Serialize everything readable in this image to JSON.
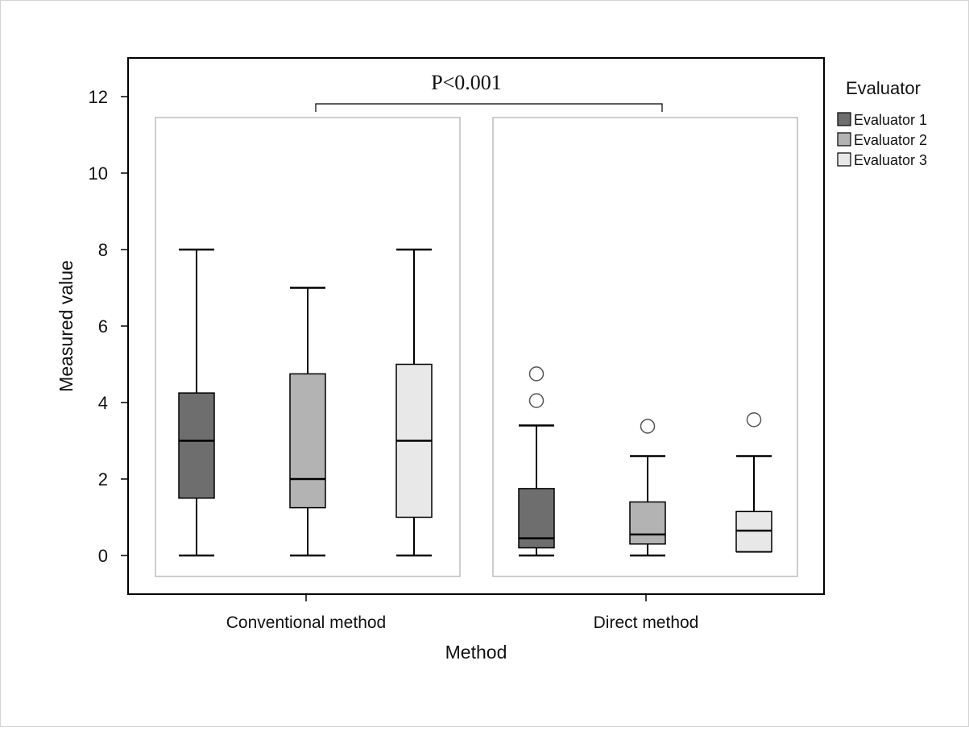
{
  "chart_data": {
    "type": "box",
    "xlabel": "Method",
    "ylabel": "Measured value",
    "categories": [
      "Conventional method",
      "Direct method"
    ],
    "ylim": [
      -0.75,
      13
    ],
    "yticks": [
      0,
      2,
      4,
      6,
      8,
      10,
      12
    ],
    "grid": false,
    "legend": {
      "title": "Evaluator",
      "placement": "right",
      "entries": [
        "Evaluator 1",
        "Evaluator 2",
        "Evaluator 3"
      ]
    },
    "annotation": "P<0.001",
    "colors": {
      "Evaluator 1": "#6e6e6e",
      "Evaluator 2": "#b3b3b3",
      "Evaluator 3": "#e8e8e8"
    },
    "series": [
      {
        "name": "Evaluator 1",
        "boxes": [
          {
            "category": "Conventional method",
            "whisker_low": 0,
            "q1": 1.5,
            "median": 3,
            "q3": 4.25,
            "whisker_high": 8,
            "outliers": []
          },
          {
            "category": "Direct method",
            "whisker_low": 0,
            "q1": 0.2,
            "median": 0.45,
            "q3": 1.75,
            "whisker_high": 3.4,
            "outliers": [
              4.05,
              4.75
            ]
          }
        ]
      },
      {
        "name": "Evaluator 2",
        "boxes": [
          {
            "category": "Conventional method",
            "whisker_low": 0,
            "q1": 1.25,
            "median": 2,
            "q3": 4.75,
            "whisker_high": 7,
            "outliers": []
          },
          {
            "category": "Direct method",
            "whisker_low": 0,
            "q1": 0.3,
            "median": 0.55,
            "q3": 1.4,
            "whisker_high": 2.6,
            "outliers": [
              3.38
            ]
          }
        ]
      },
      {
        "name": "Evaluator 3",
        "boxes": [
          {
            "category": "Conventional method",
            "whisker_low": 0,
            "q1": 1,
            "median": 3,
            "q3": 5,
            "whisker_high": 8,
            "outliers": []
          },
          {
            "category": "Direct method",
            "whisker_low": 0.1,
            "q1": 0.1,
            "median": 0.65,
            "q3": 1.15,
            "whisker_high": 2.6,
            "outliers": [
              3.55
            ]
          }
        ]
      }
    ]
  }
}
